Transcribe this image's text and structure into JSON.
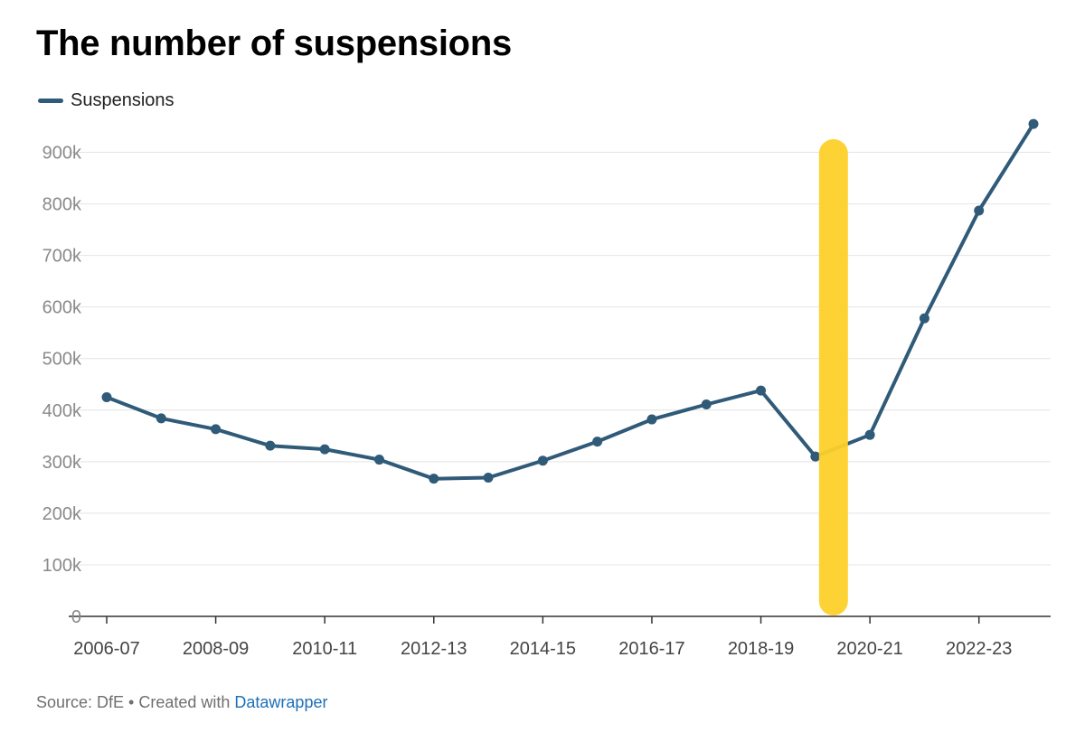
{
  "chart_data": {
    "type": "line",
    "title": "The number of suspensions",
    "xlabel": "",
    "ylabel": "",
    "categories": [
      "2006-07",
      "2007-08",
      "2008-09",
      "2009-10",
      "2010-11",
      "2011-12",
      "2012-13",
      "2013-14",
      "2014-15",
      "2015-16",
      "2016-17",
      "2017-18",
      "2018-19",
      "2019-20",
      "2020-21",
      "2021-22",
      "2022-23",
      "2023-24"
    ],
    "x_tick_labels": [
      "2006-07",
      "2008-09",
      "2010-11",
      "2012-13",
      "2014-15",
      "2016-17",
      "2018-19",
      "2020-21",
      "2022-23"
    ],
    "y_ticks": [
      0,
      100000,
      200000,
      300000,
      400000,
      500000,
      600000,
      700000,
      800000,
      900000
    ],
    "y_tick_labels": [
      "0",
      "100k",
      "200k",
      "300k",
      "400k",
      "500k",
      "600k",
      "700k",
      "800k",
      "900k"
    ],
    "ylim": [
      0,
      950000
    ],
    "grid": true,
    "legend_position": "top-left",
    "series": [
      {
        "name": "Suspensions",
        "color": "#2f5a78",
        "values": [
          425000,
          384000,
          363000,
          331000,
          324000,
          304000,
          267000,
          269000,
          302000,
          339000,
          382000,
          411000,
          438000,
          310000,
          352000,
          578000,
          787000,
          955000
        ]
      }
    ],
    "highlight": {
      "category": "2019-20",
      "color": "#fdd02b"
    }
  },
  "footer": {
    "source_text": "Source: DfE • Created with ",
    "link_text": "Datawrapper"
  }
}
